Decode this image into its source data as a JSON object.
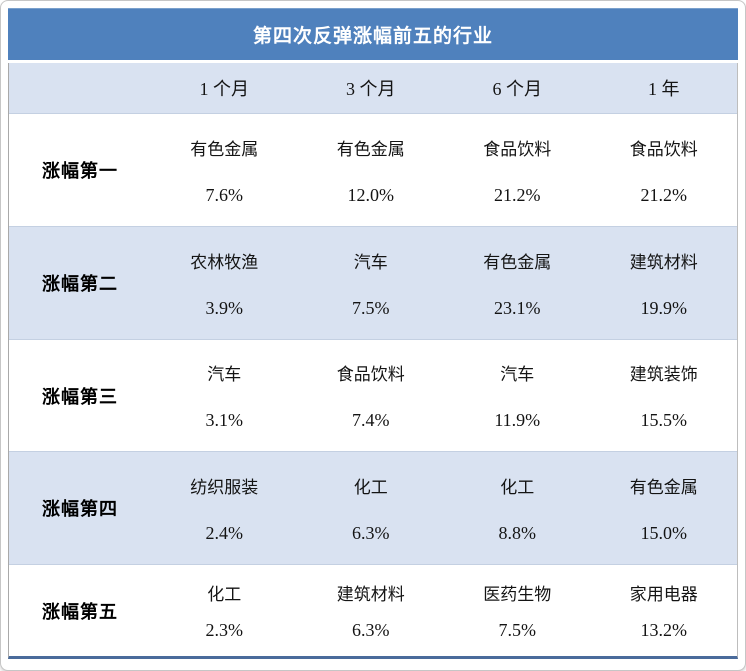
{
  "title": "第四次反弹涨幅前五的行业",
  "columns": [
    "1 个月",
    "3 个月",
    "6 个月",
    "1 年"
  ],
  "rows": [
    {
      "label": "涨幅第一",
      "cells": [
        {
          "industry": "有色金属",
          "pct": "7.6%"
        },
        {
          "industry": "有色金属",
          "pct": "12.0%"
        },
        {
          "industry": "食品饮料",
          "pct": "21.2%"
        },
        {
          "industry": "食品饮料",
          "pct": "21.2%"
        }
      ]
    },
    {
      "label": "涨幅第二",
      "cells": [
        {
          "industry": "农林牧渔",
          "pct": "3.9%"
        },
        {
          "industry": "汽车",
          "pct": "7.5%"
        },
        {
          "industry": "有色金属",
          "pct": "23.1%"
        },
        {
          "industry": "建筑材料",
          "pct": "19.9%"
        }
      ]
    },
    {
      "label": "涨幅第三",
      "cells": [
        {
          "industry": "汽车",
          "pct": "3.1%"
        },
        {
          "industry": "食品饮料",
          "pct": "7.4%"
        },
        {
          "industry": "汽车",
          "pct": "11.9%"
        },
        {
          "industry": "建筑装饰",
          "pct": "15.5%"
        }
      ]
    },
    {
      "label": "涨幅第四",
      "cells": [
        {
          "industry": "纺织服装",
          "pct": "2.4%"
        },
        {
          "industry": "化工",
          "pct": "6.3%"
        },
        {
          "industry": "化工",
          "pct": "8.8%"
        },
        {
          "industry": "有色金属",
          "pct": "15.0%"
        }
      ]
    },
    {
      "label": "涨幅第五",
      "cells": [
        {
          "industry": "化工",
          "pct": "2.3%"
        },
        {
          "industry": "建筑材料",
          "pct": "6.3%"
        },
        {
          "industry": "医药生物",
          "pct": "7.5%"
        },
        {
          "industry": "家用电器",
          "pct": "13.2%"
        }
      ]
    }
  ],
  "colors": {
    "title_bar": "#4f81bd",
    "header_row": "#d9e2f1",
    "alt_row": "#d9e2f1",
    "white_row": "#ffffff",
    "bottom_rule": "#4a6b9b",
    "row_separator": "#c4d0e2",
    "title_text": "#ffffff",
    "body_text": "#141414"
  },
  "chart_data": {
    "type": "table",
    "title": "第四次反弹涨幅前五的行业",
    "columns": [
      "1 个月",
      "3 个月",
      "6 个月",
      "1 年"
    ],
    "row_labels": [
      "涨幅第一",
      "涨幅第二",
      "涨幅第三",
      "涨幅第四",
      "涨幅第五"
    ],
    "industries": [
      [
        "有色金属",
        "有色金属",
        "食品饮料",
        "食品饮料"
      ],
      [
        "农林牧渔",
        "汽车",
        "有色金属",
        "建筑材料"
      ],
      [
        "汽车",
        "食品饮料",
        "汽车",
        "建筑装饰"
      ],
      [
        "纺织服装",
        "化工",
        "化工",
        "有色金属"
      ],
      [
        "化工",
        "建筑材料",
        "医药生物",
        "家用电器"
      ]
    ],
    "gains_percent": [
      [
        7.6,
        12.0,
        21.2,
        21.2
      ],
      [
        3.9,
        7.5,
        23.1,
        19.9
      ],
      [
        3.1,
        7.4,
        11.9,
        15.5
      ],
      [
        2.4,
        6.3,
        8.8,
        15.0
      ],
      [
        2.3,
        6.3,
        7.5,
        13.2
      ]
    ]
  }
}
